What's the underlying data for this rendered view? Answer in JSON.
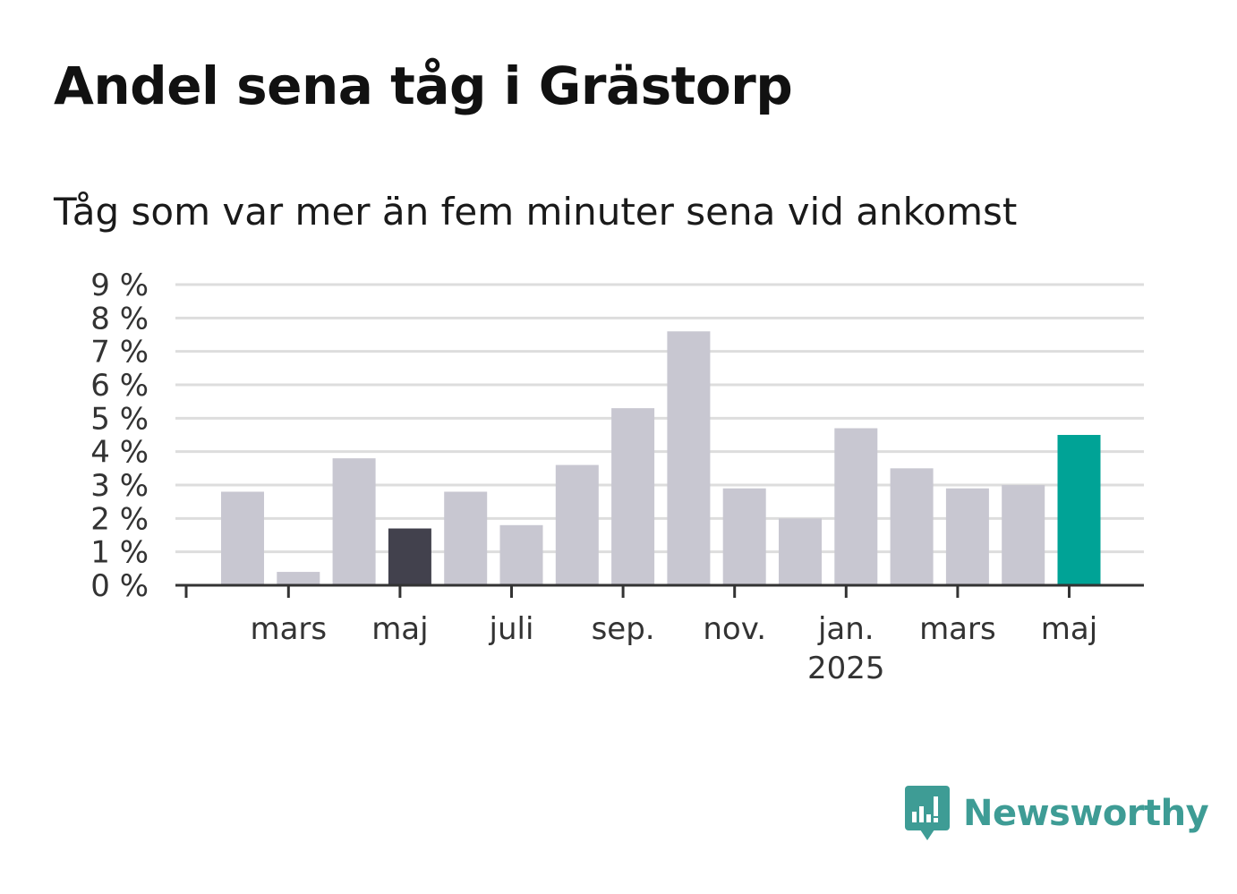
{
  "title": "Andel sena tåg i Grästorp",
  "subtitle": "Tåg som var mer än fem minuter sena vid ankomst",
  "colors": {
    "bar_default": "#c8c7d1",
    "bar_highlight_dark": "#42414d",
    "bar_highlight_current": "#00a396",
    "grid": "#dddddd",
    "axis": "#333333",
    "logo": "#3e9c95"
  },
  "chart_data": {
    "type": "bar",
    "title": "",
    "xlabel": "",
    "ylabel": "",
    "ylim": [
      0,
      9
    ],
    "y_ticks": [
      "0 %",
      "1 %",
      "2 %",
      "3 %",
      "4 %",
      "5 %",
      "6 %",
      "7 %",
      "8 %",
      "9 %"
    ],
    "grid": true,
    "x_tick_labels": [
      {
        "month_index": 1,
        "lines": [
          "mars"
        ]
      },
      {
        "month_index": 3,
        "lines": [
          "maj"
        ]
      },
      {
        "month_index": 5,
        "lines": [
          "juli"
        ]
      },
      {
        "month_index": 7,
        "lines": [
          "sep."
        ]
      },
      {
        "month_index": 9,
        "lines": [
          "nov."
        ]
      },
      {
        "month_index": 11,
        "lines": [
          "jan.",
          "2025"
        ]
      },
      {
        "month_index": 13,
        "lines": [
          "mars"
        ]
      },
      {
        "month_index": 15,
        "lines": [
          "maj"
        ]
      }
    ],
    "categories": [
      "2024-02",
      "2024-03",
      "2024-04",
      "2024-05",
      "2024-06",
      "2024-07",
      "2024-08",
      "2024-09",
      "2024-10",
      "2024-11",
      "2024-12",
      "2025-01",
      "2025-02",
      "2025-03",
      "2025-04",
      "2025-05"
    ],
    "values": [
      2.8,
      0.4,
      3.8,
      1.7,
      2.8,
      1.8,
      3.6,
      5.3,
      7.6,
      2.9,
      2.0,
      4.7,
      3.5,
      2.9,
      3.0,
      4.5
    ],
    "highlight": {
      "2024-05": "bar_highlight_dark",
      "2025-05": "bar_highlight_current"
    }
  },
  "logo": {
    "name": "Newsworthy",
    "icon": "bar-chart-speech-bubble-icon"
  }
}
